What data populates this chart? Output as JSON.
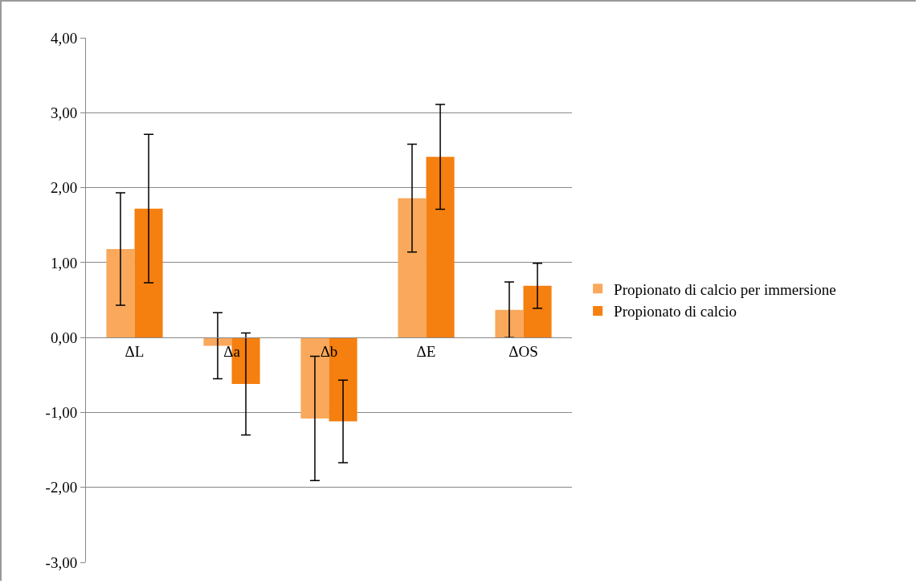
{
  "chart_data": {
    "type": "bar",
    "categories": [
      "ΔL",
      "Δa",
      "Δb",
      "ΔE",
      "ΔOS"
    ],
    "series": [
      {
        "name": "Propionato di calcio per immersione",
        "color": "#f9a85c",
        "values": [
          1.18,
          -0.11,
          -1.08,
          1.86,
          0.37
        ],
        "errors": [
          0.75,
          0.44,
          0.83,
          0.72,
          0.37
        ]
      },
      {
        "name": "Propionato di calcio",
        "color": "#f57f0f",
        "values": [
          1.72,
          -0.62,
          -1.12,
          2.41,
          0.69
        ],
        "errors": [
          0.99,
          0.68,
          0.55,
          0.7,
          0.3
        ]
      }
    ],
    "ylim": [
      -3,
      4
    ],
    "yticks": [
      {
        "value": -3,
        "label": "-3,00"
      },
      {
        "value": -2,
        "label": "-2,00"
      },
      {
        "value": -1,
        "label": "-1,00"
      },
      {
        "value": 0,
        "label": "0,00"
      },
      {
        "value": 1,
        "label": "1,00"
      },
      {
        "value": 2,
        "label": "2,00"
      },
      {
        "value": 3,
        "label": "3,00"
      },
      {
        "value": 4,
        "label": "4,00"
      }
    ],
    "grid": "y",
    "legend": "right"
  }
}
